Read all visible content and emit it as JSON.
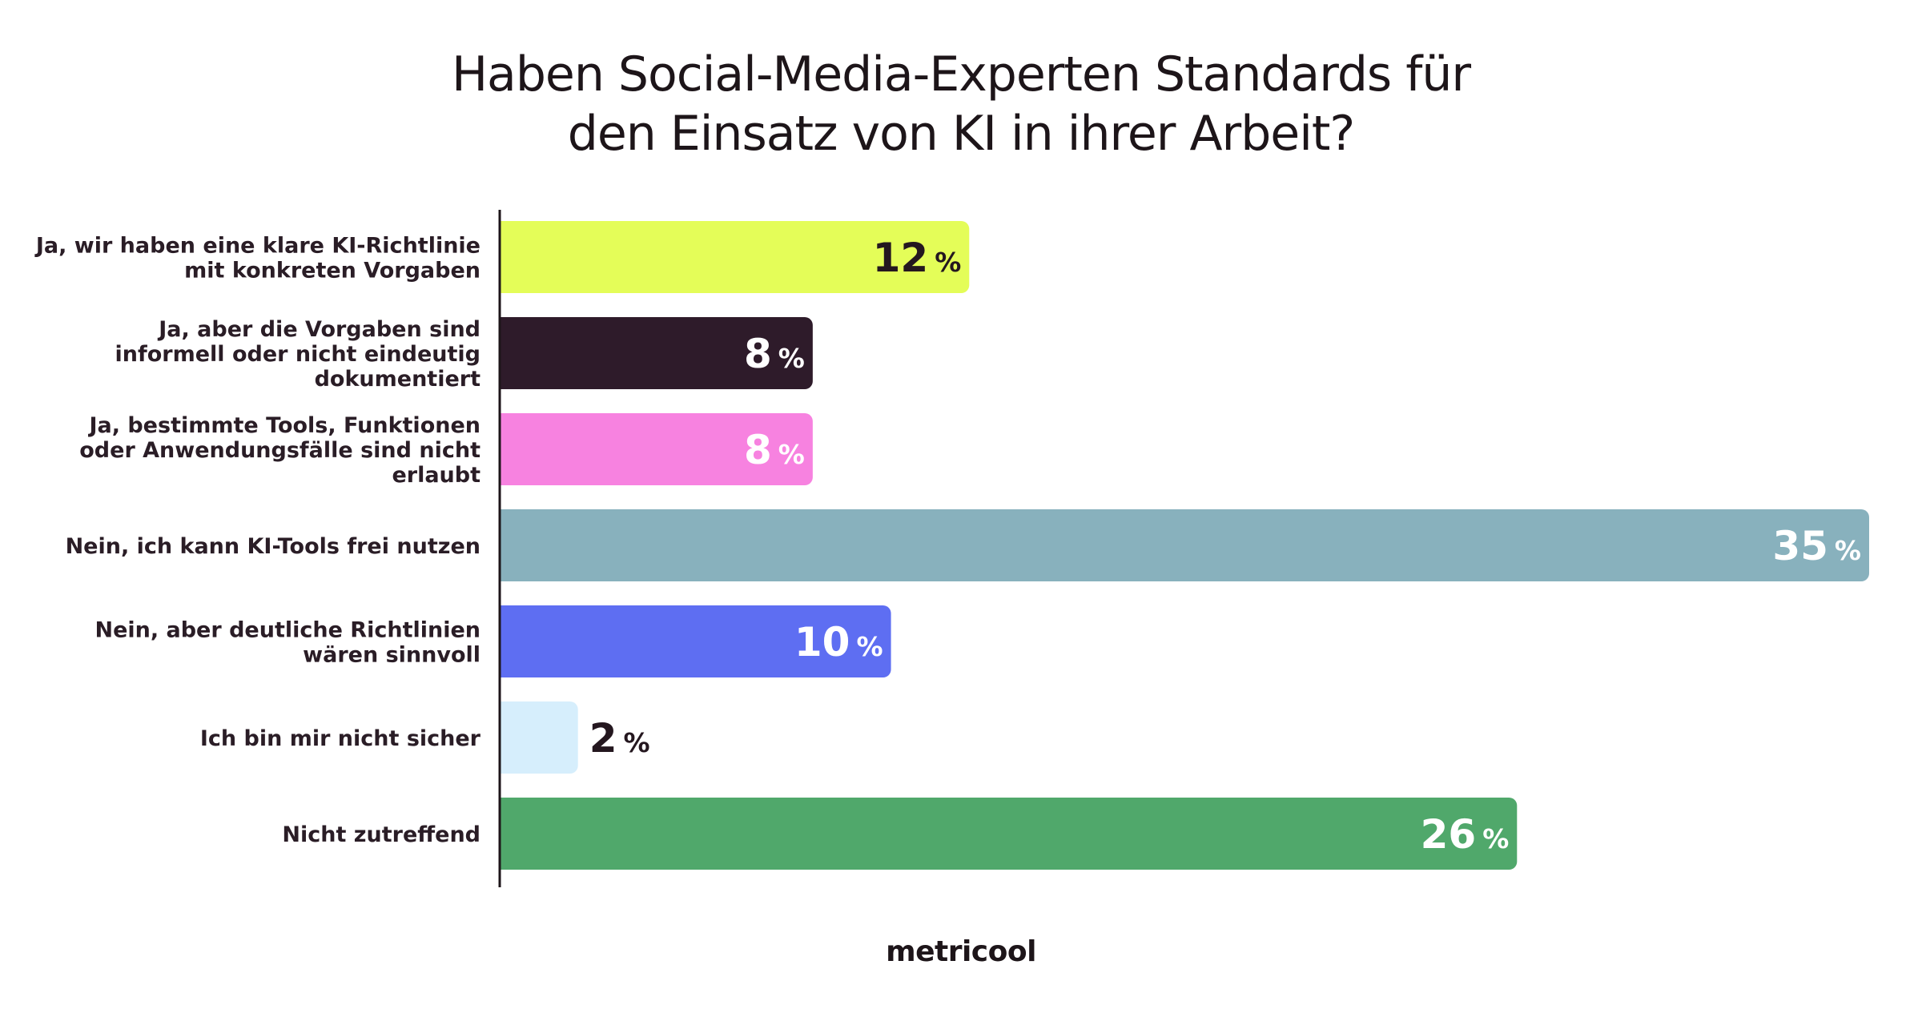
{
  "chart_data": {
    "type": "bar",
    "orientation": "horizontal",
    "title": "Haben Social-Media-Experten Standards für den Einsatz von KI in ihrer Arbeit?",
    "title_lines": [
      "Haben Social-Media-Experten Standards für",
      "den Einsatz von KI in ihrer Arbeit?"
    ],
    "unit": "%",
    "xlim": [
      0,
      35
    ],
    "grid": false,
    "legend": "none",
    "categories": [
      "Ja, wir haben eine klare KI-Richtlinie mit konkreten Vorgaben",
      "Ja, aber die Vorgaben sind informell oder nicht eindeutig dokumentiert",
      "Ja, bestimmte Tools, Funktionen oder Anwendungsfälle sind nicht erlaubt",
      "Nein, ich kann KI-Tools frei nutzen",
      "Nein, aber deutliche Richtlinien wären sinnvoll",
      "Ich bin mir nicht sicher",
      "Nicht zutreffend"
    ],
    "category_lines": [
      [
        "Ja, wir haben eine klare KI-Richtlinie",
        "mit konkreten Vorgaben"
      ],
      [
        "Ja, aber die Vorgaben sind",
        "informell oder nicht eindeutig",
        "dokumentiert"
      ],
      [
        "Ja, bestimmte Tools, Funktionen",
        "oder Anwendungsfälle sind nicht",
        "erlaubt"
      ],
      [
        "Nein, ich kann KI-Tools frei nutzen"
      ],
      [
        "Nein, aber deutliche Richtlinien",
        "wären sinnvoll"
      ],
      [
        "Ich bin mir nicht sicher"
      ],
      [
        "Nicht zutreffend"
      ]
    ],
    "values": [
      12,
      8,
      8,
      35,
      10,
      2,
      26
    ],
    "value_labels": [
      "12",
      "8",
      "8",
      "35",
      "10",
      "2",
      "26"
    ],
    "colors": [
      "#e4fd58",
      "#2e1b2a",
      "#f782e0",
      "#88b1bd",
      "#5e6ef2",
      "#d6eefc",
      "#50a86b"
    ],
    "label_colors": [
      "#24171f",
      "#ffffff",
      "#ffffff",
      "#ffffff",
      "#ffffff",
      "#24171f",
      "#ffffff"
    ],
    "label_inside": [
      true,
      true,
      true,
      true,
      true,
      false,
      true
    ]
  },
  "footer": {
    "brand": "metricool"
  }
}
